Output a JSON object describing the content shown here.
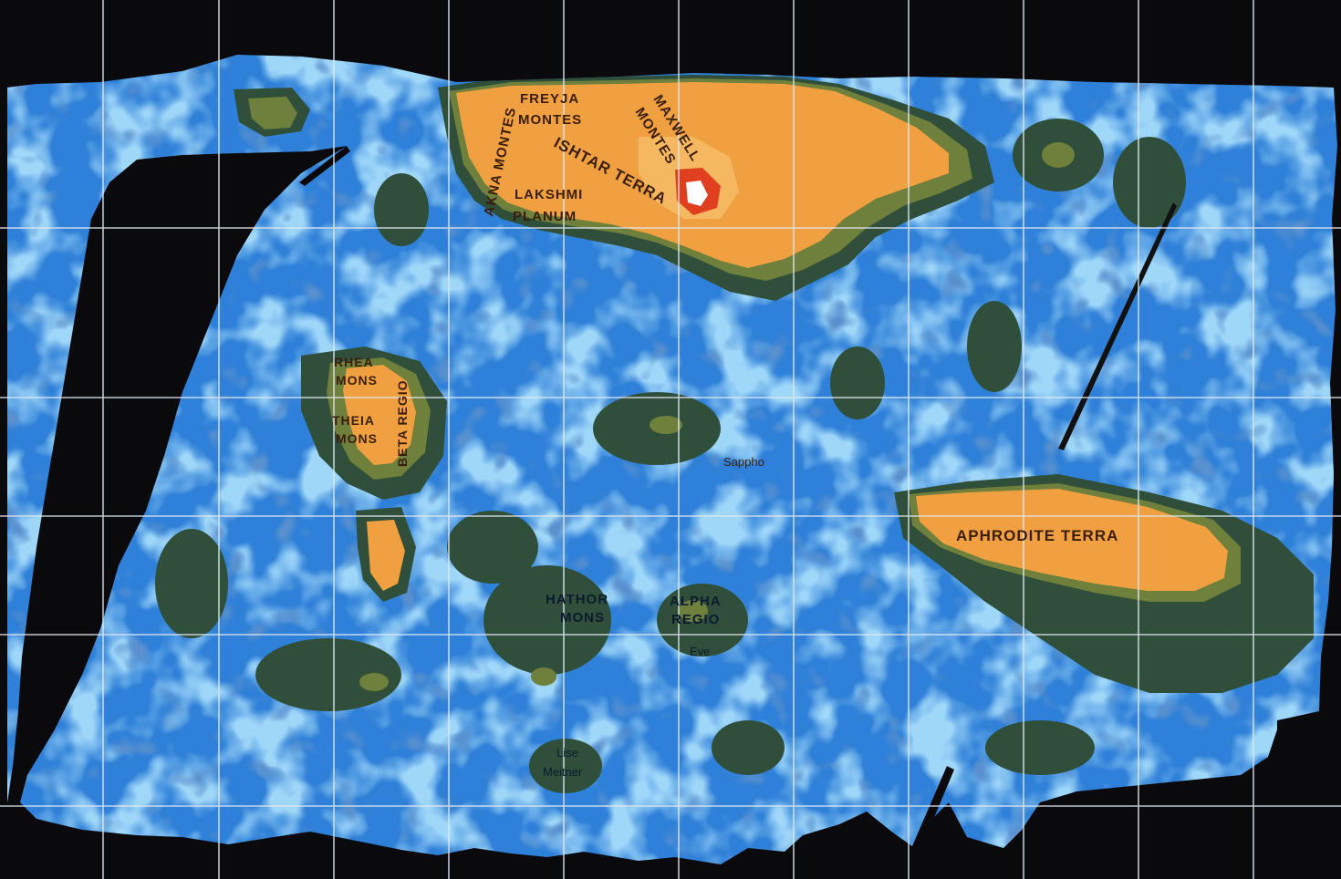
{
  "colors": {
    "space": "#0a0a0c",
    "lowland_dark": "#1f5bb8",
    "lowland": "#2f80d8",
    "plains_light": "#57aef0",
    "rolling": "#2f4f3a",
    "transition": "#6f7f3c",
    "highland": "#f0a040",
    "highland_light": "#f5b860",
    "peak": "#e04020",
    "summit": "#ffffff",
    "grid": "#dfe8f0"
  },
  "labels": {
    "akna_montes": "AKNA MONTES",
    "freyja_montes_1": "FREYJA",
    "freyja_montes_2": "MONTES",
    "maxwell_montes_1": "MAXWELL",
    "maxwell_montes_2": "MONTES",
    "ishtar_terra": "ISHTAR TERRA",
    "lakshmi_planum_1": "LAKSHMI",
    "lakshmi_planum_2": "PLANUM",
    "rhea_mons_1": "RHEA",
    "rhea_mons_2": "MONS",
    "theia_mons_1": "THEIA",
    "theia_mons_2": "MONS",
    "beta_regio": "BETA REGIO",
    "sappho": "Sappho",
    "aphrodite_terra": "APHRODITE TERRA",
    "hathor_mons_1": "HATHOR",
    "hathor_mons_2": "MONS",
    "alpha_regio_1": "ALPHA",
    "alpha_regio_2": "REGIO",
    "eve": "Eve",
    "lise_meitner_1": "Lise",
    "lise_meitner_2": "Meitner"
  }
}
